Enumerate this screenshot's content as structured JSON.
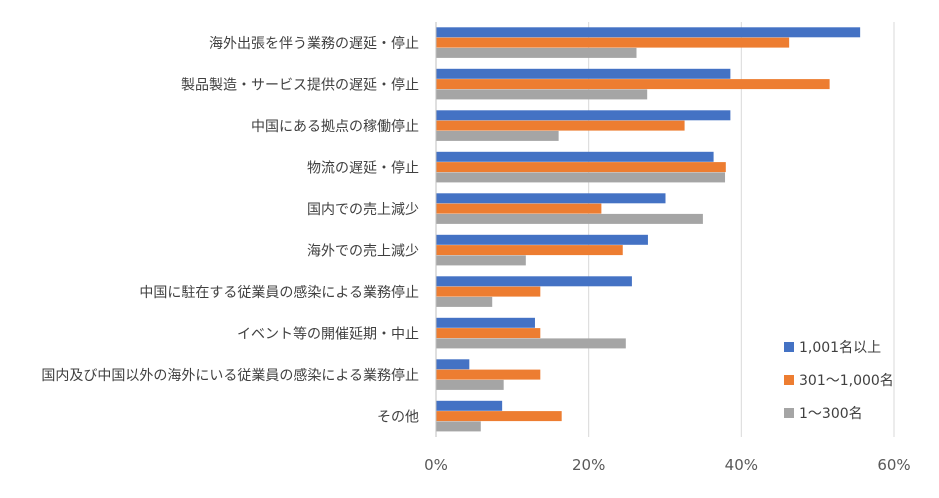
{
  "chart_data": {
    "type": "bar",
    "orientation": "horizontal",
    "categories": [
      "海外出張を伴う業務の遅延・停止",
      "製品製造・サービス提供の遅延・停止",
      "中国にある拠点の稼働停止",
      "物流の遅延・停止",
      "国内での売上減少",
      "海外での売上減少",
      "中国に駐在する従業員の感染による業務停止",
      "イベント等の開催延期・中止",
      "国内及び中国以外の海外にいる従業員の感染による業務停止",
      "その他"
    ],
    "series": [
      {
        "name": "1,001名以上",
        "color": "#4472c4",
        "values": [
          55.5,
          38.5,
          38.5,
          36.3,
          30.0,
          27.7,
          25.6,
          12.9,
          4.3,
          8.6
        ]
      },
      {
        "name": "301〜1,000名",
        "color": "#ed7d31",
        "values": [
          46.2,
          51.5,
          32.5,
          37.9,
          21.6,
          24.4,
          13.6,
          13.6,
          13.6,
          16.4
        ]
      },
      {
        "name": "1〜300名",
        "color": "#a5a5a5",
        "values": [
          26.2,
          27.6,
          16.0,
          37.8,
          34.9,
          11.7,
          7.3,
          24.8,
          8.8,
          5.8
        ]
      }
    ],
    "xlim": [
      0,
      60
    ],
    "x_ticks": [
      "0%",
      "20%",
      "40%",
      "60%"
    ],
    "x_tick_values": [
      0,
      20,
      40,
      60
    ],
    "grid": true,
    "legend_position": "bottom-right",
    "title": "",
    "xlabel": "",
    "ylabel": ""
  }
}
